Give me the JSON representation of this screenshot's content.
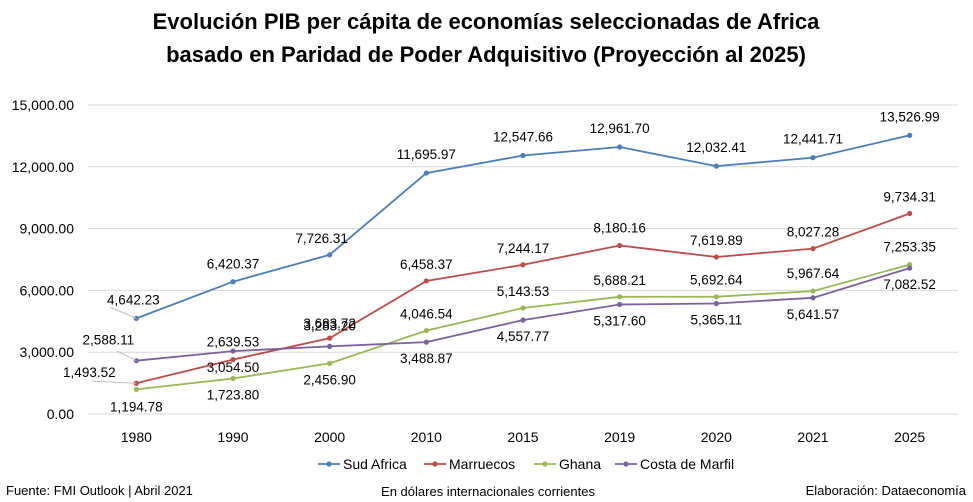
{
  "chart_data": {
    "type": "line",
    "title": "Evolución PIB per cápita de economías seleccionadas de Africa",
    "subtitle": "basado en Paridad de Poder Adquisitivo (Proyección al 2025)",
    "categories": [
      "1980",
      "1990",
      "2000",
      "2010",
      "2015",
      "2019",
      "2020",
      "2021",
      "2025"
    ],
    "ylim": [
      0,
      15000
    ],
    "yticks": [
      "0.00",
      "3,000.00",
      "6,000.00",
      "9,000.00",
      "12,000.00",
      "15,000.00"
    ],
    "grid": true,
    "legend_position": "bottom",
    "series": [
      {
        "name": "Sud Africa",
        "color": "#4a7ebb",
        "values": [
          4642.23,
          6420.37,
          7726.31,
          11695.97,
          12547.66,
          12961.7,
          12032.41,
          12441.71,
          13526.99
        ],
        "labels": [
          "4,642.23",
          "6,420.37",
          "7,726.31",
          "11,695.97",
          "12,547.66",
          "12,961.70",
          "12,032.41",
          "12,441.71",
          "13,526.99"
        ]
      },
      {
        "name": "Marruecos",
        "color": "#be4b48",
        "values": [
          1493.52,
          2639.53,
          3683.72,
          6458.37,
          7244.17,
          8180.16,
          7619.89,
          8027.28,
          9734.31
        ],
        "labels": [
          "1,493.52",
          "2,639.53",
          "3,683.72",
          "6,458.37",
          "7,244.17",
          "8,180.16",
          "7,619.89",
          "8,027.28",
          "9,734.31"
        ]
      },
      {
        "name": "Ghana",
        "color": "#98b954",
        "values": [
          1194.78,
          1723.8,
          2456.9,
          4046.54,
          5143.53,
          5688.21,
          5692.64,
          5967.64,
          7253.35
        ],
        "labels": [
          "1,194.78",
          "1,723.80",
          "2,456.90",
          "4,046.54",
          "5,143.53",
          "5,688.21",
          "5,692.64",
          "5,967.64",
          "7,253.35"
        ]
      },
      {
        "name": "Costa de Marfil",
        "color": "#7d60a0",
        "values": [
          2588.11,
          3054.5,
          3283.2,
          3488.87,
          4557.77,
          5317.6,
          5365.11,
          5641.57,
          7082.52
        ],
        "labels": [
          "2,588.11",
          "3,054.50",
          "3,283.20",
          "3,488.87",
          "4,557.77",
          "5,317.60",
          "5,365.11",
          "5,641.57",
          "7,082.52"
        ]
      }
    ]
  },
  "footer": {
    "source": "Fuente: FMI Outlook | Abril 2021",
    "units": "En dólares internacionales corrientes",
    "credit": "Elaboración: Dataeconomía"
  }
}
